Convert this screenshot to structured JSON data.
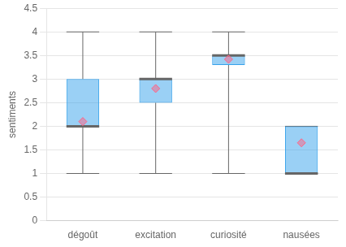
{
  "chart_data": {
    "type": "box",
    "categories": [
      "dégoût",
      "excitation",
      "curiosité",
      "nausées"
    ],
    "boxes": [
      {
        "q1": 2.0,
        "median": 2.0,
        "q3": 3.0,
        "whislo": 1.0,
        "whishi": 4.0,
        "mean": 2.1
      },
      {
        "q1": 2.5,
        "median": 3.0,
        "q3": 3.0,
        "whislo": 1.0,
        "whishi": 4.0,
        "mean": 2.8
      },
      {
        "q1": 3.3,
        "median": 3.5,
        "q3": 3.5,
        "whislo": 1.0,
        "whishi": 4.0,
        "mean": 3.42
      },
      {
        "q1": 1.0,
        "median": 1.0,
        "q3": 2.0,
        "whislo": 1.0,
        "whishi": 2.0,
        "mean": 1.65
      }
    ],
    "ylabel": "sentiments",
    "ylim": [
      0,
      4.5
    ],
    "yticks": [
      0,
      0.5,
      1,
      1.5,
      2,
      2.5,
      3,
      3.5,
      4,
      4.5
    ],
    "grid": true
  }
}
